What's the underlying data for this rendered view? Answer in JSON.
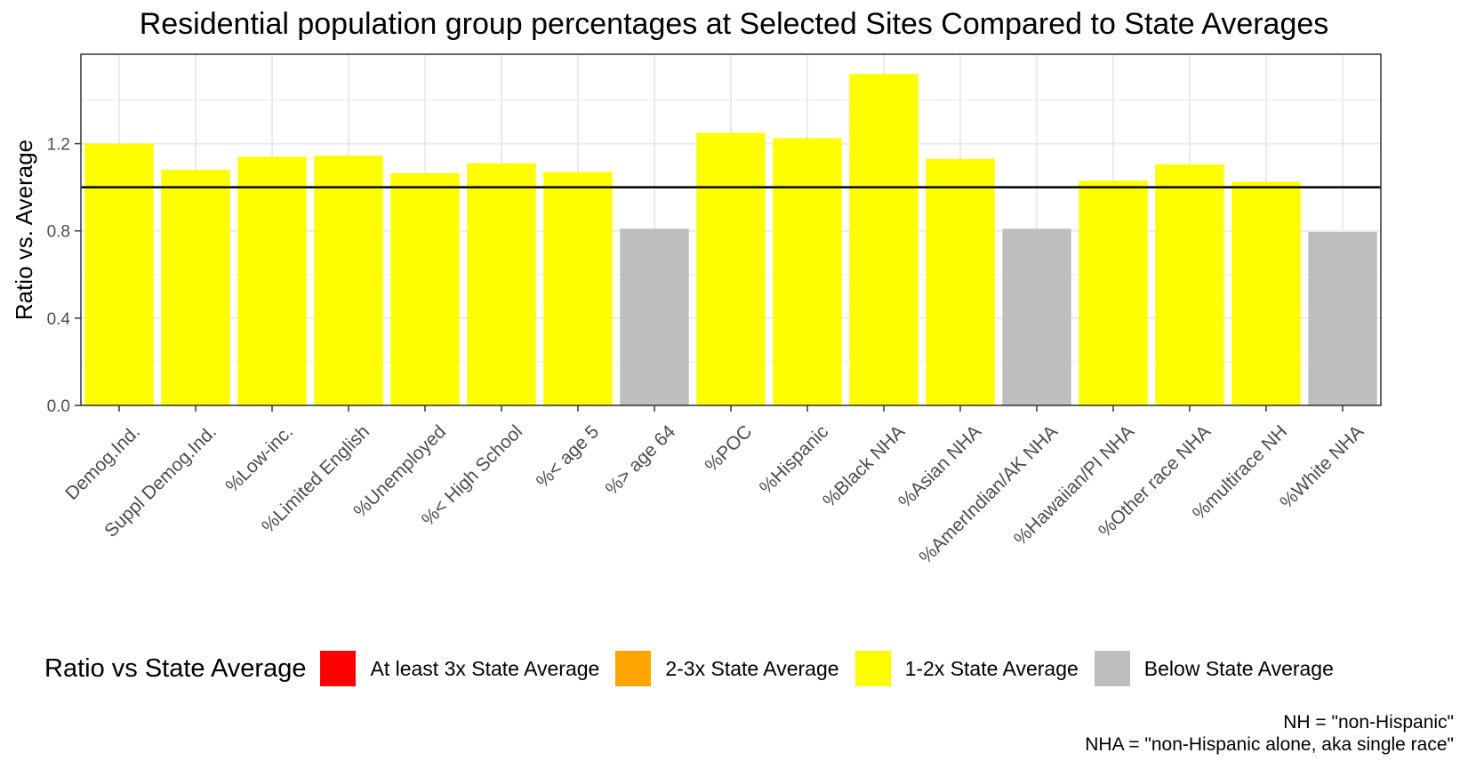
{
  "chart_data": {
    "type": "bar",
    "title": "Residential population group percentages at Selected Sites Compared to State Averages",
    "ylabel": "Ratio vs. Average",
    "xlabel": "",
    "ylim": [
      0,
      1.61
    ],
    "yticks": [
      0.0,
      0.4,
      0.8,
      1.2
    ],
    "ytick_labels": [
      "0.0",
      "0.4",
      "0.8",
      "1.2"
    ],
    "reference_line": 1.0,
    "grid": true,
    "categories": [
      "Demog.Ind.",
      "Suppl Demog.Ind.",
      "%Low-inc.",
      "%Limited English",
      "%Unemployed",
      "%< High School",
      "%< age 5",
      "%> age 64",
      "%POC",
      "%Hispanic",
      "%Black NHA",
      "%Asian NHA",
      "%AmerIndian/AK NHA",
      "%Hawaiian/PI NHA",
      "%Other race NHA",
      "%multirace NH",
      "%White NHA"
    ],
    "values": [
      1.2,
      1.08,
      1.14,
      1.145,
      1.065,
      1.11,
      1.07,
      0.81,
      1.25,
      1.225,
      1.52,
      1.13,
      0.81,
      1.03,
      1.105,
      1.025,
      0.795
    ],
    "groups": [
      "1-2x State Average",
      "1-2x State Average",
      "1-2x State Average",
      "1-2x State Average",
      "1-2x State Average",
      "1-2x State Average",
      "1-2x State Average",
      "Below State Average",
      "1-2x State Average",
      "1-2x State Average",
      "1-2x State Average",
      "1-2x State Average",
      "Below State Average",
      "1-2x State Average",
      "1-2x State Average",
      "1-2x State Average",
      "Below State Average"
    ],
    "legend": {
      "title": "Ratio vs State Average",
      "position": "bottom",
      "items": [
        {
          "label": "At least 3x State Average",
          "color": "#FF0000"
        },
        {
          "label": "2-3x State Average",
          "color": "#FFA500"
        },
        {
          "label": "1-2x State Average",
          "color": "#FFFF00"
        },
        {
          "label": "Below State Average",
          "color": "#BEBEBE"
        }
      ]
    },
    "captions": [
      "NH = \"non-Hispanic\"",
      "NHA = \"non-Hispanic alone, aka single race\""
    ]
  }
}
